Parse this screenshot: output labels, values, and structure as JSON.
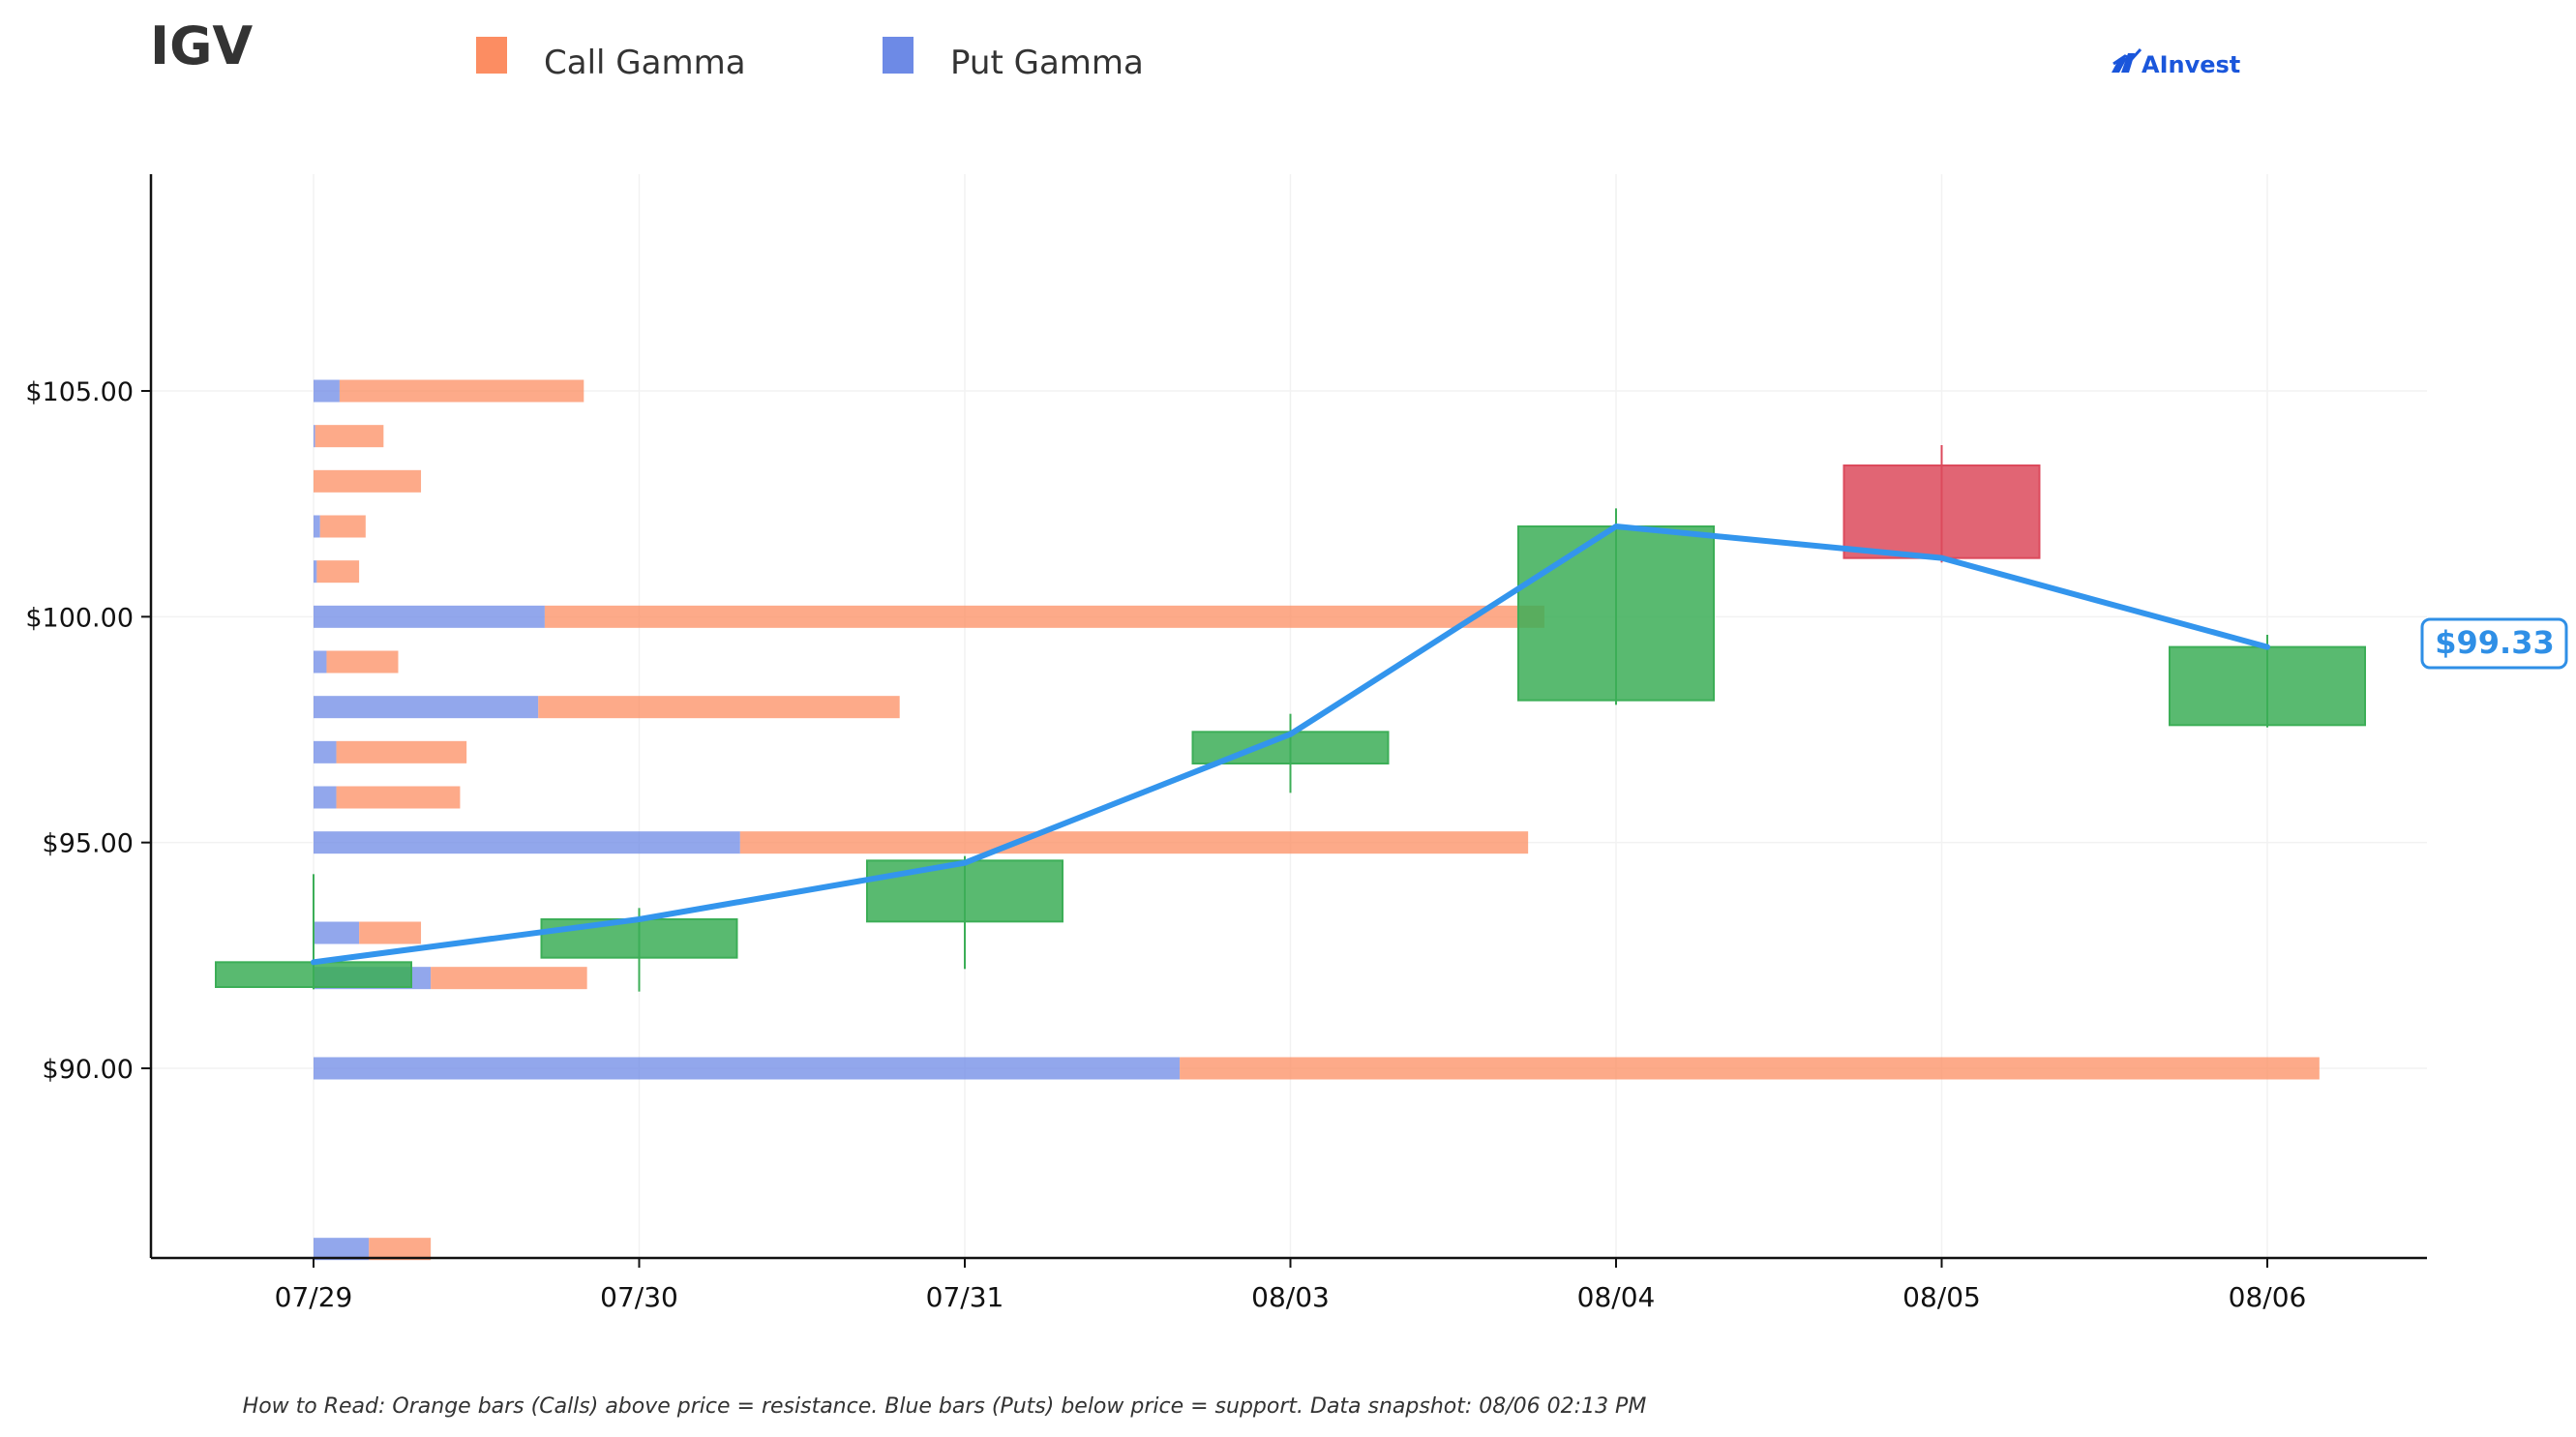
{
  "header": {
    "title": "IGV",
    "logo_text": "AInvest"
  },
  "footnote": "How to Read: Orange bars (Calls) above price = resistance. Blue bars (Puts) below price = support. Data snapshot: 08/06 02:13 PM",
  "colors": {
    "call": "#fc8d62",
    "put": "#6d8ae6",
    "up": "#3cae57",
    "down": "#dc4a5c",
    "price_line": "#3395ed",
    "axis": "#111111",
    "grid": "#f2f2f2"
  },
  "chart_data": {
    "type": "bar",
    "title": "IGV",
    "legend_placement": "top",
    "grid": true,
    "ylim": [
      85.8,
      109.8
    ],
    "yticks": [
      90,
      95,
      100,
      105
    ],
    "ytick_labels": [
      "$90.00",
      "$95.00",
      "$100.00",
      "$105.00"
    ],
    "categories": [
      "07/29",
      "07/30",
      "07/31",
      "08/03",
      "08/04",
      "08/05",
      "08/06"
    ],
    "series": [
      {
        "name": "Call Gamma",
        "color": "#fc8d62"
      },
      {
        "name": "Put Gamma",
        "color": "#6d8ae6"
      }
    ],
    "gamma_levels": [
      {
        "strike": 105,
        "put": 0.08,
        "call": 0.75
      },
      {
        "strike": 104,
        "put": 0.005,
        "call": 0.21
      },
      {
        "strike": 103,
        "put": 0.0,
        "call": 0.33
      },
      {
        "strike": 102,
        "put": 0.02,
        "call": 0.14
      },
      {
        "strike": 101,
        "put": 0.01,
        "call": 0.13
      },
      {
        "strike": 100,
        "put": 0.71,
        "call": 3.07
      },
      {
        "strike": 99,
        "put": 0.04,
        "call": 0.22
      },
      {
        "strike": 98,
        "put": 0.69,
        "call": 1.11
      },
      {
        "strike": 97,
        "put": 0.07,
        "call": 0.4
      },
      {
        "strike": 96,
        "put": 0.07,
        "call": 0.38
      },
      {
        "strike": 95,
        "put": 1.31,
        "call": 2.42
      },
      {
        "strike": 93,
        "put": 0.14,
        "call": 0.19
      },
      {
        "strike": 92,
        "put": 0.36,
        "call": 0.48
      },
      {
        "strike": 90,
        "put": 2.66,
        "call": 3.5
      },
      {
        "strike": 86,
        "put": 0.17,
        "call": 0.19
      }
    ],
    "candles": [
      {
        "date": "07/29",
        "open": 91.8,
        "close": 92.35,
        "high": 94.3,
        "low": 91.75
      },
      {
        "date": "07/30",
        "open": 92.45,
        "close": 93.3,
        "high": 93.55,
        "low": 91.7
      },
      {
        "date": "07/31",
        "open": 93.25,
        "close": 94.6,
        "high": 94.7,
        "low": 92.2
      },
      {
        "date": "08/03",
        "open": 96.75,
        "close": 97.45,
        "high": 97.85,
        "low": 96.1
      },
      {
        "date": "08/04",
        "open": 98.15,
        "close": 102.0,
        "high": 102.4,
        "low": 98.05
      },
      {
        "date": "08/05",
        "open": 103.35,
        "close": 101.3,
        "high": 103.8,
        "low": 101.2
      },
      {
        "date": "08/06",
        "open": 97.6,
        "close": 99.33,
        "high": 99.6,
        "low": 97.55
      }
    ],
    "price_line": [
      92.35,
      93.3,
      94.55,
      97.4,
      102.0,
      101.3,
      99.33
    ],
    "last_price_label": "$99.33"
  }
}
